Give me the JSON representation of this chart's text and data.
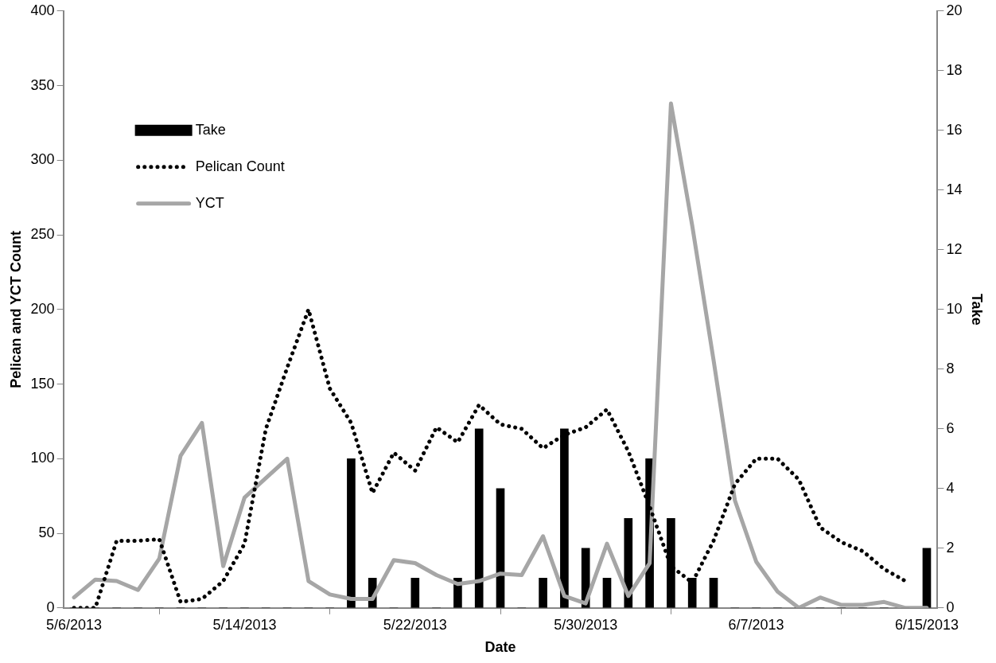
{
  "chart_data": {
    "type": "line",
    "xlabel": "Date",
    "ylabel": "Pelican and YCT Count",
    "y2label": "Take",
    "x": [
      "2013-05-06",
      "2013-05-07",
      "2013-05-08",
      "2013-05-09",
      "2013-05-10",
      "2013-05-11",
      "2013-05-12",
      "2013-05-13",
      "2013-05-14",
      "2013-05-15",
      "2013-05-16",
      "2013-05-17",
      "2013-05-18",
      "2013-05-19",
      "2013-05-20",
      "2013-05-21",
      "2013-05-22",
      "2013-05-23",
      "2013-05-24",
      "2013-05-25",
      "2013-05-26",
      "2013-05-27",
      "2013-05-28",
      "2013-05-29",
      "2013-05-30",
      "2013-05-31",
      "2013-06-01",
      "2013-06-02",
      "2013-06-03",
      "2013-06-04",
      "2013-06-05",
      "2013-06-06",
      "2013-06-07",
      "2013-06-08",
      "2013-06-09",
      "2013-06-10",
      "2013-06-11",
      "2013-06-12",
      "2013-06-13",
      "2013-06-14",
      "2013-06-15"
    ],
    "series": [
      {
        "name": "Take",
        "type": "bar",
        "axis": "y2",
        "color": "#000000",
        "values": [
          0,
          0,
          0,
          0,
          0,
          0,
          0,
          0,
          0,
          0,
          0,
          0,
          0,
          5,
          1,
          0,
          1,
          0,
          1,
          6,
          4,
          0,
          1,
          6,
          2,
          1,
          3,
          5,
          3,
          1,
          1,
          0,
          0,
          0,
          0,
          0,
          0,
          0,
          0,
          0,
          2
        ]
      },
      {
        "name": "Pelican Count",
        "line_style": "dotted",
        "color": "#000000",
        "values": [
          0,
          0,
          45,
          45,
          46,
          4,
          6,
          18,
          43,
          120,
          161,
          200,
          147,
          124,
          77,
          104,
          92,
          121,
          111,
          136,
          123,
          120,
          107,
          116,
          121,
          133,
          105,
          68,
          28,
          17,
          45,
          83,
          100,
          100,
          86,
          54,
          44,
          38,
          26,
          18,
          null
        ]
      },
      {
        "name": "YCT",
        "line_style": "solid",
        "color": "#a6a6a6",
        "values": [
          7,
          19,
          18,
          12,
          33,
          102,
          124,
          28,
          74,
          87,
          100,
          18,
          9,
          6,
          6,
          32,
          30,
          22,
          16,
          18,
          23,
          22,
          48,
          8,
          3,
          43,
          8,
          30,
          338,
          256,
          166,
          72,
          31,
          11,
          0,
          7,
          2,
          2,
          4,
          0,
          0
        ]
      }
    ],
    "xlim": [
      "2013-05-05T12:00",
      "2013-06-15T12:00"
    ],
    "xticks": [
      {
        "value": "2013-05-06",
        "label": "5/6/2013"
      },
      {
        "value": "2013-05-14",
        "label": "5/14/2013"
      },
      {
        "value": "2013-05-22",
        "label": "5/22/2013"
      },
      {
        "value": "2013-05-30",
        "label": "5/30/2013"
      },
      {
        "value": "2013-06-07",
        "label": "6/7/2013"
      },
      {
        "value": "2013-06-15",
        "label": "6/15/2013"
      }
    ],
    "ylim": [
      0,
      400
    ],
    "yticks": [
      0,
      50,
      100,
      150,
      200,
      250,
      300,
      350,
      400
    ],
    "y2lim": [
      0,
      20
    ],
    "y2ticks": [
      0,
      2,
      4,
      6,
      8,
      10,
      12,
      14,
      16,
      18,
      20
    ],
    "grid": false,
    "legend": "top left",
    "marker": "none"
  }
}
